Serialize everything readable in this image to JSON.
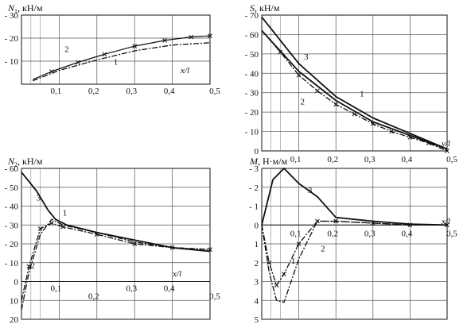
{
  "chart_data": [
    {
      "id": "n1",
      "type": "line",
      "title": "N₁, кН/м",
      "title_parts": {
        "sym": "N",
        "sub": "1",
        "unit": ", кН/м"
      },
      "xlabel": "x/l",
      "ylabel": "",
      "xlim": [
        0,
        0.5
      ],
      "ylim": [
        0,
        30
      ],
      "grid": true,
      "x_ticks": [
        0.1,
        0.2,
        0.3,
        0.4,
        0.5
      ],
      "x_tick_labels": [
        "0,1",
        "0,2",
        "0,3",
        "0,4",
        "0,5"
      ],
      "y_ticks": [
        10,
        20,
        30
      ],
      "y_tick_labels": [
        "- 10",
        "- 20",
        "- 30"
      ],
      "series": [
        {
          "name": "2",
          "style": "solid-x",
          "x": [
            0.03,
            0.08,
            0.15,
            0.22,
            0.3,
            0.38,
            0.45,
            0.5
          ],
          "y": [
            2,
            5.5,
            9.5,
            13,
            16.5,
            19,
            20.5,
            21
          ]
        },
        {
          "name": "1",
          "style": "dashdot",
          "x": [
            0.03,
            0.1,
            0.2,
            0.3,
            0.4,
            0.5
          ],
          "y": [
            1.5,
            6,
            10.5,
            14.5,
            17,
            18
          ]
        }
      ],
      "series_labels": [
        {
          "text": "2",
          "x": 0.12,
          "y": 14
        },
        {
          "text": "1",
          "x": 0.25,
          "y": 8.5
        }
      ]
    },
    {
      "id": "s",
      "type": "line",
      "title": "S, кН/м",
      "title_parts": {
        "sym": "S",
        "sub": "",
        "unit": ", кН/м"
      },
      "xlabel": "y/l",
      "ylabel": "",
      "xlim": [
        0,
        0.5
      ],
      "ylim": [
        0,
        70
      ],
      "grid": true,
      "x_ticks": [
        0.1,
        0.2,
        0.3,
        0.4,
        0.5
      ],
      "x_tick_labels": [
        "0,1",
        "0,2",
        "0,3",
        "0,4",
        "0,5"
      ],
      "y_ticks": [
        0,
        10,
        20,
        30,
        40,
        50,
        60,
        70
      ],
      "y_tick_labels": [
        "0",
        "- 10",
        "- 20",
        "- 30",
        "- 40",
        "- 50",
        "- 60",
        "- 70"
      ],
      "series": [
        {
          "name": "3",
          "style": "solid",
          "x": [
            0,
            0.1,
            0.2,
            0.3,
            0.4,
            0.5
          ],
          "y": [
            69,
            45,
            28,
            17,
            9,
            1
          ]
        },
        {
          "name": "1",
          "style": "solid",
          "x": [
            0,
            0.1,
            0.2,
            0.3,
            0.4,
            0.5
          ],
          "y": [
            62,
            41,
            26,
            15,
            8,
            1
          ]
        },
        {
          "name": "2",
          "style": "dashdot-x",
          "x": [
            0,
            0.05,
            0.1,
            0.15,
            0.2,
            0.25,
            0.3,
            0.35,
            0.4,
            0.45,
            0.5
          ],
          "y": [
            62,
            51,
            39,
            31,
            24,
            19,
            14,
            10,
            7,
            4,
            0
          ]
        }
      ],
      "series_labels": [
        {
          "text": "3",
          "x": 0.12,
          "y": 47
        },
        {
          "text": "1",
          "x": 0.27,
          "y": 28
        },
        {
          "text": "2",
          "x": 0.11,
          "y": 24
        }
      ]
    },
    {
      "id": "n2",
      "type": "line",
      "title": "N₂, кН/м",
      "title_parts": {
        "sym": "N",
        "sub": "2",
        "unit": ", кН/м"
      },
      "xlabel": "x/l",
      "ylabel": "",
      "xlim": [
        0,
        0.5
      ],
      "ylim": [
        -20,
        60
      ],
      "grid": true,
      "x_ticks": [
        0.1,
        0.2,
        0.3,
        0.4,
        0.5
      ],
      "x_tick_labels": [
        "0,1",
        "0,2",
        "0,3",
        "0,4",
        "0,5"
      ],
      "y_ticks": [
        -20,
        -10,
        0,
        10,
        20,
        30,
        40,
        50,
        60
      ],
      "y_tick_labels": [
        "20",
        "10",
        "0",
        "- 10",
        "- 20",
        "- 30",
        "- 40",
        "- 50",
        "- 60"
      ],
      "series": [
        {
          "name": "3",
          "style": "solid",
          "x": [
            0,
            0.04,
            0.07,
            0.09,
            0.12,
            0.2,
            0.3,
            0.4,
            0.5
          ],
          "y": [
            58,
            48,
            38,
            33,
            30,
            26,
            22,
            18,
            16
          ]
        },
        {
          "name": "1",
          "style": "dashdot",
          "x": [
            0,
            0.02,
            0.05,
            0.08,
            0.11,
            0.2,
            0.3,
            0.4,
            0.5
          ],
          "y": [
            -15,
            5,
            25,
            33,
            30,
            26,
            21,
            18,
            17
          ]
        },
        {
          "name": "2",
          "style": "dashdot-x",
          "x": [
            0,
            0.02,
            0.05,
            0.08,
            0.11,
            0.2,
            0.3,
            0.4,
            0.5
          ],
          "y": [
            -10,
            8,
            28,
            31,
            29,
            25,
            20,
            18,
            17
          ]
        }
      ],
      "series_labels": [
        {
          "text": "3",
          "x": 0.045,
          "y": 43
        },
        {
          "text": "1",
          "x": 0.115,
          "y": 35
        },
        {
          "text": "2",
          "x": 0.03,
          "y": 7
        }
      ]
    },
    {
      "id": "m",
      "type": "line",
      "title": "M, Н·м/м",
      "title_parts": {
        "sym": "M",
        "sub": "",
        "unit": ", Н·м/м"
      },
      "xlabel": "x/l",
      "ylabel": "",
      "xlim": [
        0,
        0.5
      ],
      "ylim": [
        -5,
        3
      ],
      "grid": true,
      "x_ticks": [
        0.1,
        0.2,
        0.3,
        0.4,
        0.5
      ],
      "x_tick_labels": [
        "0,1",
        "0,2",
        "0,3",
        "0,4",
        "0,5"
      ],
      "y_ticks": [
        -5,
        -4,
        -3,
        -2,
        -1,
        0,
        1,
        2,
        3
      ],
      "y_tick_labels": [
        "5",
        "4",
        "3",
        "2",
        "1",
        "0",
        "- 1",
        "- 2",
        "- 3"
      ],
      "series": [
        {
          "name": "3",
          "style": "solid",
          "x": [
            0,
            0.03,
            0.06,
            0.1,
            0.15,
            0.2,
            0.3,
            0.4,
            0.5
          ],
          "y": [
            0,
            2.4,
            3,
            2.2,
            1.5,
            0.4,
            0.2,
            0.05,
            0
          ]
        },
        {
          "name": "1",
          "style": "dashdot",
          "x": [
            0,
            0.02,
            0.04,
            0.06,
            0.1,
            0.15,
            0.2,
            0.3,
            0.4,
            0.5
          ],
          "y": [
            0,
            -2.5,
            -4,
            -4.1,
            -1.8,
            0.2,
            0.2,
            0.1,
            0,
            0
          ]
        },
        {
          "name": "2",
          "style": "dashdot-x",
          "x": [
            0,
            0.02,
            0.04,
            0.06,
            0.1,
            0.15,
            0.2,
            0.3,
            0.4,
            0.5
          ],
          "y": [
            0,
            -2,
            -3.2,
            -2.6,
            -1,
            0.2,
            0.2,
            0.1,
            0,
            0
          ]
        }
      ],
      "series_labels": [
        {
          "text": "3",
          "x": 0.13,
          "y": 1.7
        },
        {
          "text": "1",
          "x": 0.085,
          "y": -2.05
        },
        {
          "text": "2",
          "x": 0.165,
          "y": -1.4
        }
      ]
    }
  ]
}
